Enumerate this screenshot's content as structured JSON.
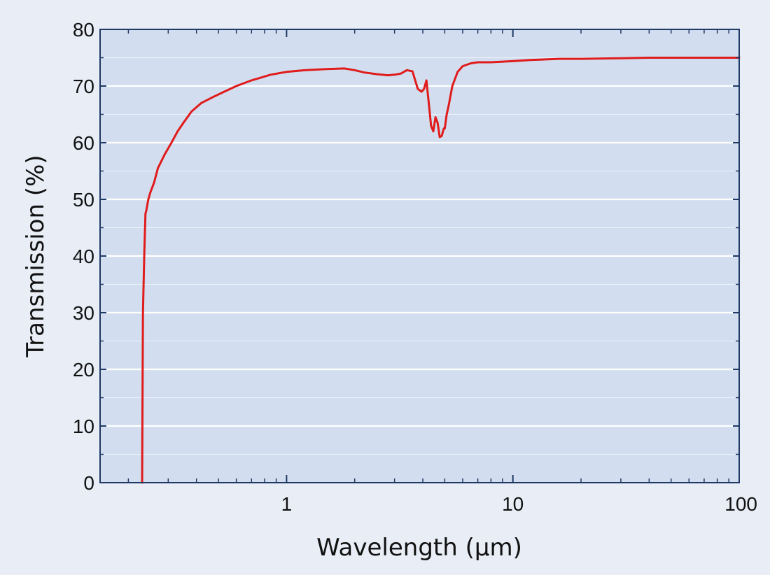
{
  "colors": {
    "background": "#e8edf6",
    "plot_background": "#d2deef",
    "frame": "#1f3a66",
    "grid": "#ffffff",
    "series": "#e01b1b"
  },
  "chart_data": {
    "type": "line",
    "xlabel": "Wavelength (µm)",
    "ylabel": "Transmission (%)",
    "x_scale": "log",
    "xlim": [
      0.15,
      100
    ],
    "ylim": [
      0,
      80
    ],
    "x_ticks": [
      1,
      10,
      100
    ],
    "x_tick_labels": [
      "1",
      "10",
      "100"
    ],
    "y_ticks": [
      0,
      10,
      20,
      30,
      40,
      50,
      60,
      70,
      80
    ],
    "y_tick_labels": [
      "0",
      "10",
      "20",
      "30",
      "40",
      "50",
      "60",
      "70",
      "80"
    ],
    "grid": true,
    "legend": "none",
    "series": [
      {
        "color": "#e01b1b",
        "x": [
          0.23,
          0.232,
          0.235,
          0.238,
          0.24,
          0.245,
          0.25,
          0.26,
          0.27,
          0.29,
          0.31,
          0.33,
          0.35,
          0.38,
          0.42,
          0.47,
          0.53,
          0.6,
          0.7,
          0.85,
          1.0,
          1.2,
          1.5,
          1.8,
          2.0,
          2.2,
          2.5,
          2.8,
          3.0,
          3.2,
          3.4,
          3.6,
          3.8,
          3.95,
          4.05,
          4.15,
          4.25,
          4.35,
          4.45,
          4.55,
          4.65,
          4.75,
          4.85,
          4.95,
          5.0,
          5.1,
          5.2,
          5.4,
          5.7,
          6.0,
          6.5,
          7.0,
          8.0,
          10.0,
          12.0,
          16.0,
          20.0,
          30.0,
          40.0,
          50.0,
          70.0,
          100.0
        ],
        "y": [
          0,
          30,
          40,
          47.5,
          48,
          50,
          51.2,
          53,
          55.5,
          58,
          60,
          62,
          63.5,
          65.5,
          67,
          68,
          69,
          70,
          71,
          72,
          72.5,
          72.8,
          73,
          73.1,
          72.8,
          72.4,
          72.1,
          71.9,
          72,
          72.2,
          72.8,
          72.6,
          69.5,
          69,
          69.5,
          71,
          67,
          63,
          62,
          64.5,
          63.5,
          61,
          61.2,
          62.5,
          62.5,
          65,
          66.5,
          70,
          72.5,
          73.5,
          74,
          74.2,
          74.2,
          74.4,
          74.6,
          74.8,
          74.8,
          74.9,
          75,
          75,
          75,
          75
        ]
      }
    ]
  }
}
